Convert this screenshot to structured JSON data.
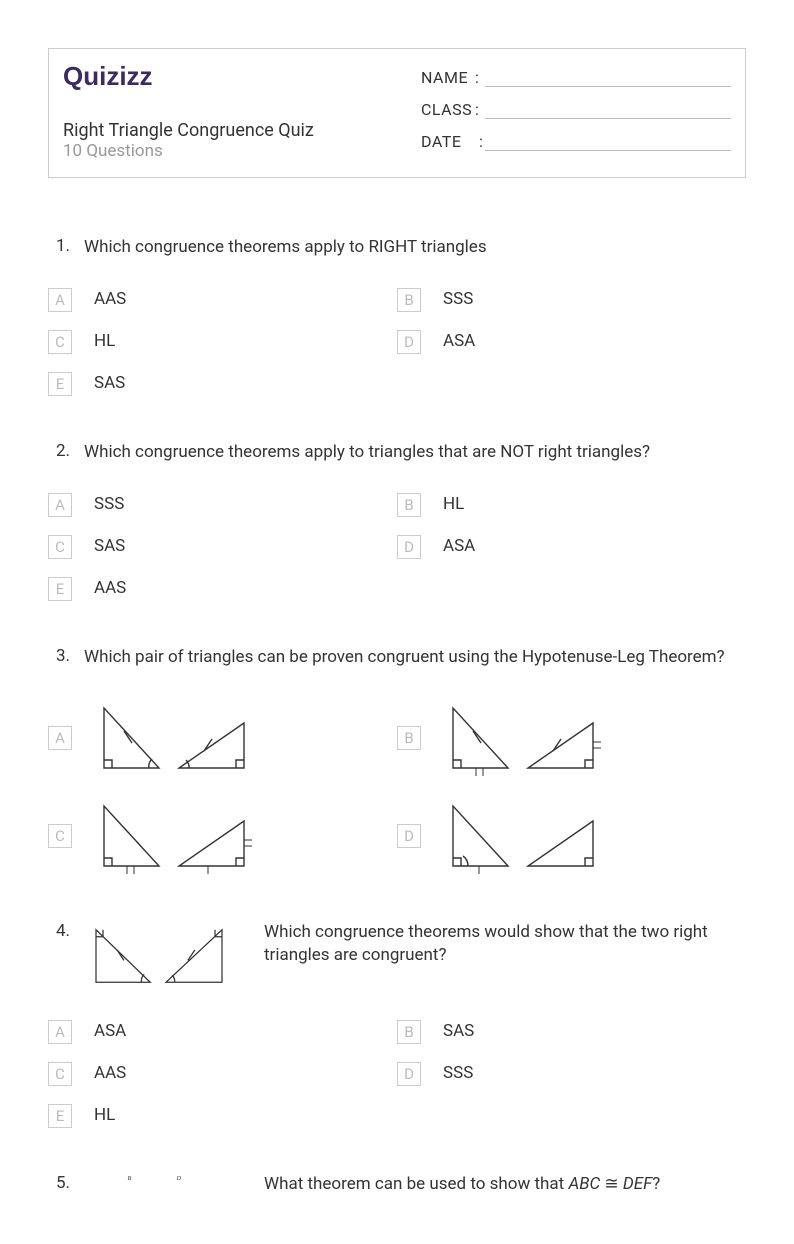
{
  "brand": "Quizizz",
  "brand_color": "#3a2a66",
  "title": "Right Triangle Congruence Quiz",
  "subtitle": "10 Questions",
  "info_fields": [
    {
      "label": "NAME"
    },
    {
      "label": "CLASS"
    },
    {
      "label": "DATE"
    }
  ],
  "option_letter_border": "#cccccc",
  "option_letter_color": "#bbbbbb",
  "text_color": "#333333",
  "questions": [
    {
      "num": "1.",
      "text": "Which congruence theorems apply to RIGHT triangles",
      "options": [
        {
          "letter": "A",
          "text": "AAS"
        },
        {
          "letter": "B",
          "text": "SSS"
        },
        {
          "letter": "C",
          "text": "HL"
        },
        {
          "letter": "D",
          "text": "ASA"
        },
        {
          "letter": "E",
          "text": "SAS"
        }
      ]
    },
    {
      "num": "2.",
      "text": "Which congruence theorems apply to triangles that are NOT right triangles?",
      "options": [
        {
          "letter": "A",
          "text": "SSS"
        },
        {
          "letter": "B",
          "text": "HL"
        },
        {
          "letter": "C",
          "text": "SAS"
        },
        {
          "letter": "D",
          "text": "ASA"
        },
        {
          "letter": "E",
          "text": "AAS"
        }
      ]
    },
    {
      "num": "3.",
      "text": "Which pair of triangles can be proven congruent using the Hypotenuse-Leg Theorem?",
      "image_options": true,
      "options": [
        {
          "letter": "A",
          "svg": "triA"
        },
        {
          "letter": "B",
          "svg": "triB"
        },
        {
          "letter": "C",
          "svg": "triC"
        },
        {
          "letter": "D",
          "svg": "triD"
        }
      ]
    },
    {
      "num": "4.",
      "text": "Which congruence theorems would show that the two right triangles are congruent?",
      "lead_image": "triLead4",
      "options": [
        {
          "letter": "A",
          "text": "ASA"
        },
        {
          "letter": "B",
          "text": "SAS"
        },
        {
          "letter": "C",
          "text": "AAS"
        },
        {
          "letter": "D",
          "text": "SSS"
        },
        {
          "letter": "E",
          "text": "HL"
        }
      ]
    },
    {
      "num": "5.",
      "text_html": "What theorem can be used to show that <i>ABC</i> ≅ <i>DEF</i>?",
      "lead_image": "triLead5",
      "partial": true
    }
  ],
  "svg_style": {
    "stroke": "#333333",
    "stroke_width": 1.4,
    "tick_len": 6,
    "right_angle_size": 8
  }
}
